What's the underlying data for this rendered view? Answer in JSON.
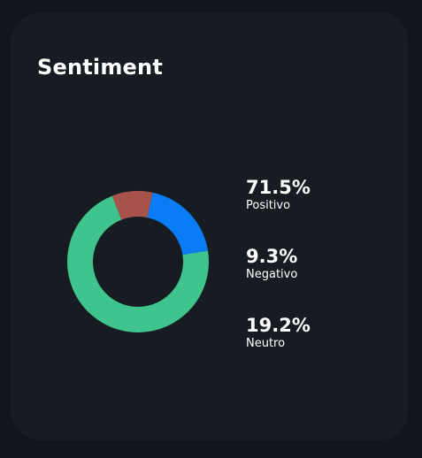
{
  "card": {
    "title": "Sentiment"
  },
  "chart_data": {
    "type": "pie",
    "categories": [
      "Positivo",
      "Negativo",
      "Neutro"
    ],
    "values": [
      71.5,
      9.3,
      19.2
    ],
    "colors": [
      "#3fc48e",
      "#a7524a",
      "#0a7cf6"
    ],
    "legend": [
      {
        "value": "71.5%",
        "label": "Positivo"
      },
      {
        "value": "9.3%",
        "label": "Negativo"
      },
      {
        "value": "19.2%",
        "label": "Neutro"
      }
    ]
  }
}
